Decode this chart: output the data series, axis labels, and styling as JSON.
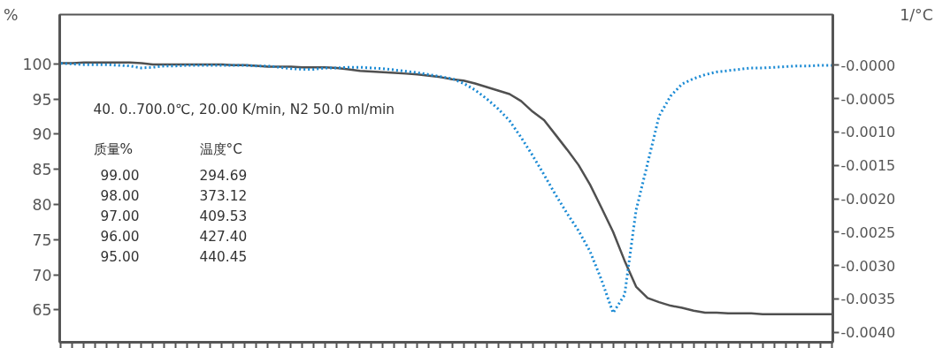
{
  "chart_data": {
    "type": "line",
    "ylabel": "%",
    "y2label": "1/°C",
    "categories": [
      null,
      null,
      null,
      null,
      null,
      null,
      null,
      null,
      null,
      null,
      null,
      null,
      null,
      null,
      null,
      null,
      null,
      null,
      null,
      null,
      null,
      null,
      null,
      null,
      null,
      null,
      null,
      null,
      null,
      null,
      null,
      null,
      null,
      null,
      null,
      null,
      null,
      null,
      null,
      null,
      null,
      null,
      null,
      null,
      null,
      null,
      null,
      null,
      null,
      null,
      null,
      null,
      null,
      null,
      null,
      null,
      null,
      null,
      null,
      null,
      null,
      null,
      null,
      null,
      null,
      null,
      null,
      null
    ],
    "series": [
      {
        "color": "#505050",
        "line_style": "solid",
        "values": [
          100.1,
          100.1,
          100.2,
          100.2,
          100.2,
          100.2,
          100.2,
          100.1,
          99.9,
          99.9,
          99.9,
          99.9,
          99.9,
          99.9,
          99.9,
          99.8,
          99.8,
          99.7,
          99.6,
          99.6,
          99.6,
          99.5,
          99.5,
          99.5,
          99.4,
          99.2,
          99.0,
          98.9,
          98.8,
          98.7,
          98.6,
          98.5,
          98.3,
          98.1,
          97.8,
          97.6,
          97.2,
          96.7,
          96.2,
          95.7,
          94.7,
          93.2,
          92.0,
          89.9,
          87.8,
          85.6,
          82.8,
          79.5,
          76.1,
          72.0,
          68.3,
          66.7,
          66.1,
          65.6,
          65.3,
          64.9,
          64.6,
          64.6,
          64.5,
          64.5,
          64.5,
          64.4,
          64.4,
          64.4,
          64.4,
          64.4,
          64.4,
          64.4
        ]
      },
      {
        "color": "#1a8ad4",
        "line_style": "dotted",
        "axis": "y2",
        "values": [
          3e-05,
          2e-05,
          1e-05,
          1e-05,
          1e-05,
          0,
          -1e-05,
          -4e-05,
          -3e-05,
          -1e-05,
          -1e-05,
          0,
          0,
          0,
          0,
          0,
          0,
          -1e-05,
          -1e-05,
          -3e-05,
          -5e-05,
          -6e-05,
          -6e-05,
          -4e-05,
          -4e-05,
          -3e-05,
          -3e-05,
          -4e-05,
          -5e-05,
          -7e-05,
          -9e-05,
          -0.00011,
          -0.00014,
          -0.00017,
          -0.0002,
          -0.00027,
          -0.00037,
          -0.0005,
          -0.00065,
          -0.00083,
          -0.00108,
          -0.00135,
          -0.00164,
          -0.00194,
          -0.00222,
          -0.00248,
          -0.00279,
          -0.00322,
          -0.00371,
          -0.00344,
          -0.00217,
          -0.00147,
          -0.00076,
          -0.00046,
          -0.00028,
          -0.0002,
          -0.00014,
          -0.0001,
          -8e-05,
          -6e-05,
          -4e-05,
          -4e-05,
          -3e-05,
          -2e-05,
          -1e-05,
          -1e-05,
          0,
          0
        ]
      }
    ],
    "ylim": [
      60.4,
      107
    ],
    "yticks": [
      65,
      70,
      75,
      80,
      85,
      90,
      95,
      100
    ],
    "y2lim": [
      -0.00415,
      0.00076
    ],
    "y2ticks": [
      {
        "value": 0,
        "label": "-0.0000"
      },
      {
        "value": -0.0005,
        "label": "-0.0005"
      },
      {
        "value": -0.001,
        "label": "-0.0010"
      },
      {
        "value": -0.0015,
        "label": "-0.0015"
      },
      {
        "value": -0.002,
        "label": "-0.0020"
      },
      {
        "value": -0.0025,
        "label": "-0.0025"
      },
      {
        "value": -0.003,
        "label": "-0.0030"
      },
      {
        "value": -0.0035,
        "label": "-0.0035"
      },
      {
        "value": -0.004,
        "label": "-0.0040"
      }
    ],
    "tick_labels": "y",
    "grid": false,
    "annotations": [
      "40. 0..700.0℃, 20.00 K/min, N2 50.0 ml/min",
      "质量%",
      "温度°C",
      "99.00",
      "294.69",
      "98.00",
      "373.12",
      "97.00",
      "409.53",
      "96.00",
      "427.40",
      "95.00",
      "440.45"
    ]
  }
}
